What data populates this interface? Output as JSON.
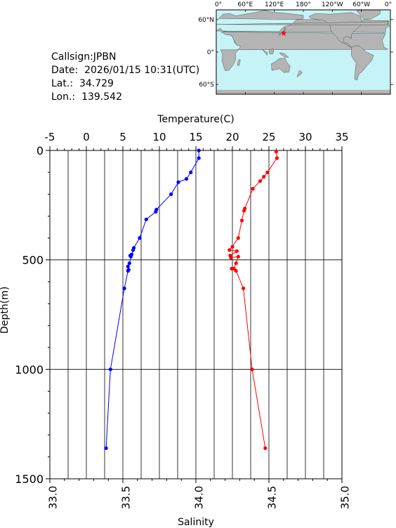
{
  "info": {
    "callsign_label": "Callsign:",
    "callsign": "JPBN",
    "date_label": "Date:",
    "date": "2026/01/15 10:31(UTC)",
    "lat_label": "Lat.:",
    "lat": "34.729",
    "lon_label": "Lon.:",
    "lon": "139.542"
  },
  "map": {
    "lon_ticks": [
      "0°",
      "60°E",
      "120°E",
      "180°",
      "120°W",
      "60°W",
      "0°"
    ],
    "lat_ticks": [
      "60°N",
      "0°",
      "60°S"
    ],
    "ocean_color": "#c6f3f6",
    "land_color": "#b4b4b4",
    "marker": {
      "lon": 139.542,
      "lat": 34.729,
      "color": "#ff0000"
    }
  },
  "chart_data": {
    "type": "line",
    "top_axis": {
      "label": "Temperature(C)",
      "range": [
        -5,
        35
      ],
      "ticks": [
        "-5",
        "0",
        "5",
        "10",
        "15",
        "20",
        "25",
        "30",
        "35"
      ]
    },
    "bottom_axis": {
      "label": "Salinity",
      "range": [
        33.0,
        35.0
      ],
      "ticks": [
        "33.0",
        "33.5",
        "34.0",
        "34.5",
        "35.0"
      ]
    },
    "y_axis": {
      "label": "Depth(m)",
      "range": [
        0,
        1500
      ],
      "inverted": true,
      "ticks": [
        "0",
        "500",
        "1000",
        "1500"
      ]
    },
    "grid": true,
    "series": [
      {
        "axis": "top",
        "color": "#0000ff",
        "points": [
          [
            15.4,
            0
          ],
          [
            15.4,
            35
          ],
          [
            14.3,
            100
          ],
          [
            13.7,
            130
          ],
          [
            12.6,
            145
          ],
          [
            11.6,
            200
          ],
          [
            9.6,
            270
          ],
          [
            9.5,
            280
          ],
          [
            8.2,
            315
          ],
          [
            7.3,
            400
          ],
          [
            6.5,
            445
          ],
          [
            6.4,
            455
          ],
          [
            6.2,
            475
          ],
          [
            6.0,
            480
          ],
          [
            6.1,
            485
          ],
          [
            5.9,
            515
          ],
          [
            5.7,
            530
          ],
          [
            5.8,
            545
          ],
          [
            5.7,
            550
          ],
          [
            5.2,
            630
          ],
          [
            3.3,
            1000
          ],
          [
            2.7,
            1360
          ]
        ]
      },
      {
        "axis": "top",
        "color": "#ff0000",
        "points": [
          [
            26.0,
            5
          ],
          [
            26.1,
            35
          ],
          [
            24.8,
            100
          ],
          [
            24.3,
            120
          ],
          [
            23.8,
            140
          ],
          [
            22.8,
            175
          ],
          [
            21.7,
            265
          ],
          [
            21.6,
            275
          ],
          [
            21.3,
            320
          ],
          [
            20.8,
            400
          ],
          [
            20.0,
            440
          ],
          [
            19.6,
            455
          ],
          [
            20.6,
            460
          ],
          [
            19.7,
            480
          ],
          [
            19.8,
            490
          ],
          [
            20.8,
            485
          ],
          [
            20.5,
            515
          ],
          [
            20.2,
            540
          ],
          [
            19.9,
            540
          ],
          [
            20.5,
            550
          ],
          [
            21.5,
            630
          ],
          [
            22.7,
            1000
          ],
          [
            24.5,
            1360
          ]
        ]
      }
    ]
  }
}
